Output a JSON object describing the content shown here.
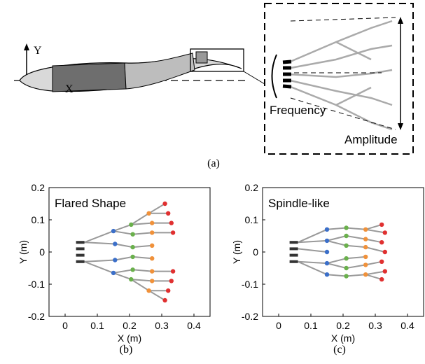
{
  "diagram": {
    "y_label": "Y",
    "x_label": "X",
    "frequency": "Frequency",
    "amplitude": "Amplitude",
    "caption": "(a)"
  },
  "chart_data": [
    {
      "type": "scatter",
      "title": "Flared Shape",
      "xlabel": "X (m)",
      "ylabel": "Y (m)",
      "caption": "(b)",
      "xlim": [
        -0.05,
        0.45
      ],
      "ylim": [
        -0.2,
        0.2
      ],
      "xticks": [
        0,
        0.1,
        0.2,
        0.3,
        0.4
      ],
      "yticks": [
        -0.2,
        -0.1,
        0,
        0.1,
        0.2
      ],
      "series": [
        {
          "color": "#333333",
          "x": [
            0.06,
            0.06,
            0.06,
            0.06
          ],
          "y": [
            0.03,
            0.01,
            -0.01,
            -0.03
          ]
        },
        {
          "color": "#3b6fc9",
          "x": [
            0.15,
            0.155,
            0.155,
            0.15
          ],
          "y": [
            0.065,
            0.025,
            -0.025,
            -0.065
          ]
        },
        {
          "color": "#6ab04c",
          "x": [
            0.205,
            0.21,
            0.21,
            0.21,
            0.21,
            0.205
          ],
          "y": [
            0.085,
            0.055,
            0.015,
            -0.015,
            -0.055,
            -0.085
          ]
        },
        {
          "color": "#f0913a",
          "x": [
            0.26,
            0.27,
            0.27,
            0.27,
            0.27,
            0.27,
            0.27,
            0.26
          ],
          "y": [
            0.12,
            0.09,
            0.06,
            0.02,
            -0.02,
            -0.06,
            -0.09,
            -0.12
          ]
        },
        {
          "color": "#e03030",
          "x": [
            0.31,
            0.32,
            0.33,
            0.335,
            0.335,
            0.33,
            0.32,
            0.31
          ],
          "y": [
            0.15,
            0.12,
            0.09,
            0.06,
            -0.06,
            -0.09,
            -0.12,
            -0.15
          ]
        }
      ]
    },
    {
      "type": "scatter",
      "title": "Spindle-like",
      "xlabel": "X (m)",
      "ylabel": "Y (m)",
      "caption": "(c)",
      "xlim": [
        -0.05,
        0.45
      ],
      "ylim": [
        -0.2,
        0.2
      ],
      "xticks": [
        0,
        0.1,
        0.2,
        0.3,
        0.4
      ],
      "yticks": [
        -0.2,
        -0.1,
        0,
        0.1,
        0.2
      ],
      "series": [
        {
          "color": "#333333",
          "x": [
            0.06,
            0.06,
            0.06,
            0.06
          ],
          "y": [
            0.03,
            0.01,
            -0.01,
            -0.03
          ]
        },
        {
          "color": "#3b6fc9",
          "x": [
            0.15,
            0.15,
            0.15,
            0.15,
            0.15
          ],
          "y": [
            0.07,
            0.035,
            0,
            -0.035,
            -0.07
          ]
        },
        {
          "color": "#6ab04c",
          "x": [
            0.21,
            0.21,
            0.21,
            0.21,
            0.21,
            0.21
          ],
          "y": [
            0.075,
            0.05,
            0.02,
            -0.02,
            -0.05,
            -0.075
          ]
        },
        {
          "color": "#f0913a",
          "x": [
            0.27,
            0.27,
            0.27,
            0.27,
            0.27,
            0.27
          ],
          "y": [
            0.07,
            0.04,
            0.015,
            -0.015,
            -0.04,
            -0.07
          ]
        },
        {
          "color": "#e03030",
          "x": [
            0.32,
            0.33,
            0.32,
            0.33,
            0.32,
            0.33,
            0.32
          ],
          "y": [
            0.085,
            0.06,
            0.03,
            0,
            -0.03,
            -0.06,
            -0.085
          ]
        }
      ]
    }
  ]
}
